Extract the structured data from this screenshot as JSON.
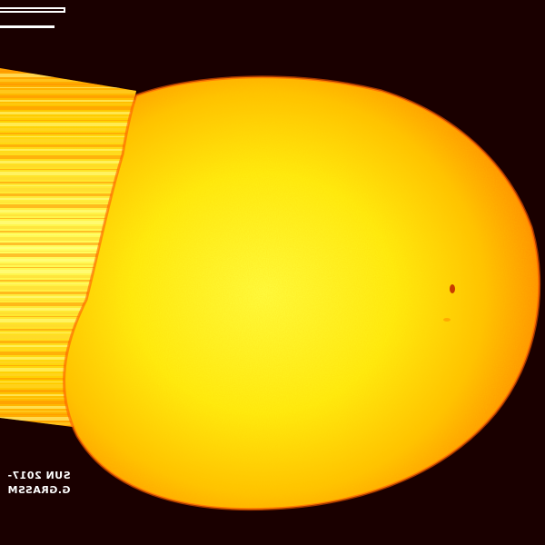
{
  "image": {
    "subject": "sun-disk",
    "colors": {
      "background": "#1a0000",
      "disk_core": "#ffff3a",
      "disk_mid": "#ffd400",
      "disk_limb": "#ff7a00",
      "streak_light": "#ffff80",
      "streak_dark": "#ff9a00"
    }
  },
  "caption": {
    "line1": "SUN 2017-",
    "line2": "G.GRASSM"
  }
}
